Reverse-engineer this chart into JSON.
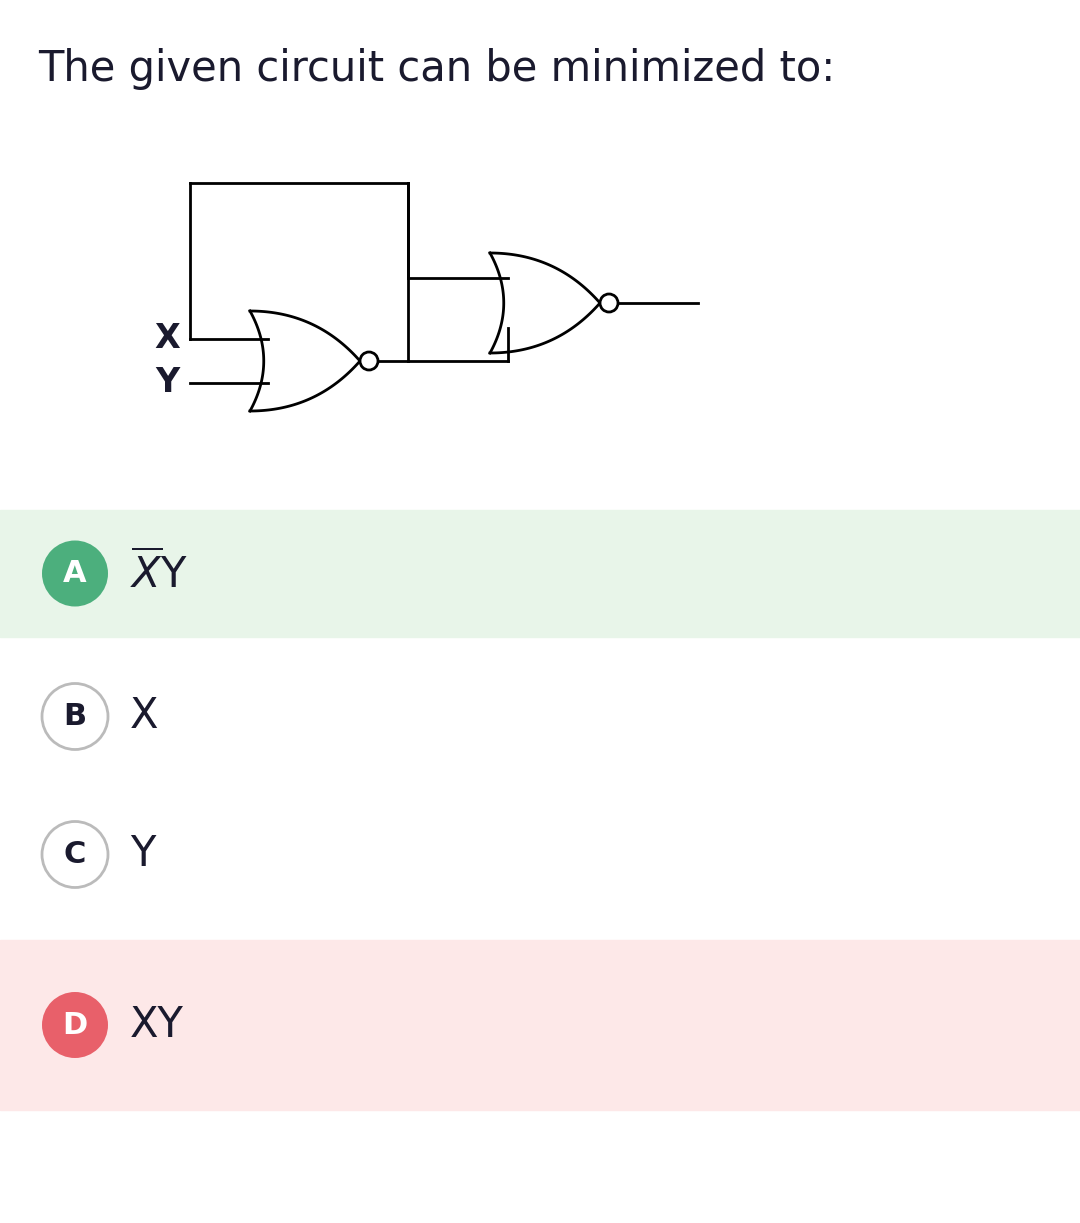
{
  "title": "The given circuit can be minimized to:",
  "title_fontsize": 30,
  "title_fontweight": "normal",
  "background_color": "#ffffff",
  "options": [
    {
      "label": "A",
      "text_parts": [
        {
          "text": "X",
          "overline": true
        },
        {
          "text": "Y",
          "overline": false
        }
      ],
      "circle_color": "#4CAF7D",
      "text_color": "#1a1a2e",
      "bg_color": "#e8f5e9",
      "circle_outlined": false
    },
    {
      "label": "B",
      "text_parts": [
        {
          "text": "X",
          "overline": false
        }
      ],
      "circle_color": "#ffffff",
      "text_color": "#1a1a2e",
      "bg_color": "#ffffff",
      "circle_outlined": true
    },
    {
      "label": "C",
      "text_parts": [
        {
          "text": "Y",
          "overline": false
        }
      ],
      "circle_color": "#ffffff",
      "text_color": "#1a1a2e",
      "bg_color": "#ffffff",
      "circle_outlined": true
    },
    {
      "label": "D",
      "text_parts": [
        {
          "text": "XY",
          "overline": false
        }
      ],
      "circle_color": "#e8606a",
      "text_color": "#1a1a2e",
      "bg_color": "#fde8e8",
      "circle_outlined": false
    }
  ],
  "option_label_fontsize": 22,
  "option_text_fontsize": 30,
  "lw": 2.0
}
